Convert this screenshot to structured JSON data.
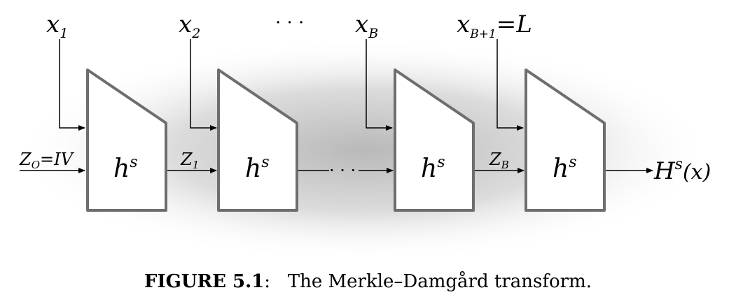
{
  "inputs": {
    "x1": {
      "base": "x",
      "sub": "1"
    },
    "x2": {
      "base": "x",
      "sub": "2"
    },
    "dots_top": "· · ·",
    "xB": {
      "base": "x",
      "sub": "B"
    },
    "xB1": {
      "base": "x",
      "sub": "B+1",
      "rest": "=L"
    }
  },
  "chain": {
    "z0": {
      "base": "Z",
      "sub": "O",
      "rest": "=IV"
    },
    "z1": {
      "base": "Z",
      "sub": "1"
    },
    "zB": {
      "base": "Z",
      "sub": "B"
    },
    "dots_mid": "· · ·"
  },
  "block_label": {
    "base": "h",
    "sup": "s"
  },
  "output": {
    "base": "H",
    "sup": "s",
    "arg": "(x)"
  },
  "caption": {
    "label": "FIGURE 5.1",
    "colon": ":",
    "text": "The Merkle–Damgård transform."
  }
}
